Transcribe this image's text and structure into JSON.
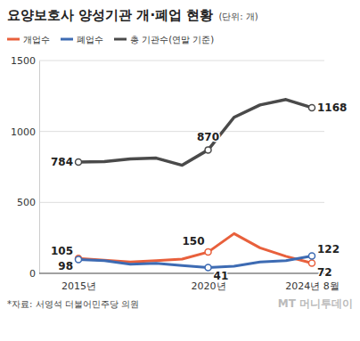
{
  "chart_data": {
    "type": "line",
    "title": "요양보호사 양성기관 개·폐업 현황",
    "subtitle": "(단위: 개)",
    "source": "*자료: 서영석 더불어민주당 의원",
    "watermark": "MT 머니투데이",
    "categories": [
      "2015년",
      null,
      null,
      null,
      null,
      "2020년",
      null,
      null,
      null,
      "2024년 8월"
    ],
    "series": [
      {
        "name": "개업수",
        "color": "#e8603c",
        "values": [
          105,
          92,
          80,
          90,
          100,
          150,
          280,
          180,
          120,
          72
        ],
        "value_labels": [
          "105",
          null,
          null,
          null,
          null,
          "150",
          null,
          null,
          null,
          "72"
        ]
      },
      {
        "name": "폐업수",
        "color": "#3d6bb3",
        "values": [
          98,
          90,
          65,
          70,
          55,
          41,
          50,
          80,
          90,
          122
        ],
        "value_labels": [
          "98",
          null,
          null,
          null,
          null,
          "41",
          null,
          null,
          null,
          "122"
        ]
      },
      {
        "name": "총 기관수(연말 기준)",
        "color": "#4a4a4a",
        "values": [
          784,
          787,
          806,
          812,
          762,
          870,
          1100,
          1187,
          1225,
          1168
        ],
        "value_labels": [
          "784",
          null,
          null,
          null,
          null,
          "870",
          null,
          null,
          null,
          "1168"
        ]
      }
    ],
    "ylim": [
      0,
      1500
    ],
    "yticks": [
      0,
      500,
      1000,
      1500
    ],
    "grid": true,
    "legend": "top",
    "data_labels": true,
    "marker": "circle"
  }
}
